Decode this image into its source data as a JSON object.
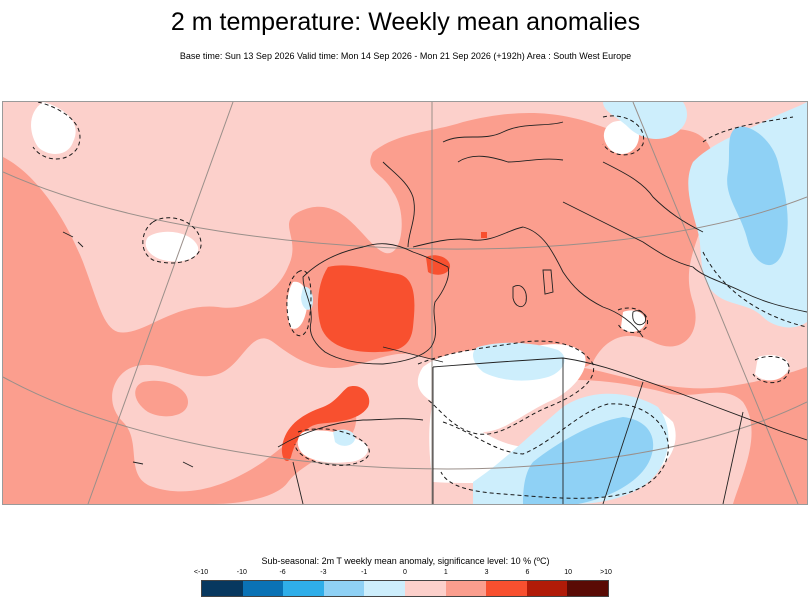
{
  "header": {
    "title": "2 m temperature: Weekly mean anomalies",
    "subtitle": "Base time: Sun 13 Sep 2026 Valid time: Mon 14 Sep 2026 - Mon 21 Sep 2026 (+192h) Area : South West Europe"
  },
  "map": {
    "region": "South West Europe",
    "layers": [
      "temperature-anomaly-fill",
      "significance-contours",
      "coastlines",
      "country-borders",
      "graticule"
    ]
  },
  "legend": {
    "title": "Sub-seasonal: 2m T weekly mean anomaly, significance level: 10 % (ºC)",
    "tick_labels": [
      "<-10",
      "-10",
      "-6",
      "-3",
      "-1",
      "0",
      "1",
      "3",
      "6",
      "10",
      ">10"
    ],
    "colors": [
      "#07385f",
      "#0a72b5",
      "#2faee9",
      "#8fd1f5",
      "#cdeefc",
      "#ffffff",
      "#fcd0cb",
      "#fb9e8e",
      "#f8502f",
      "#b11b08",
      "#5a0b05"
    ]
  }
}
